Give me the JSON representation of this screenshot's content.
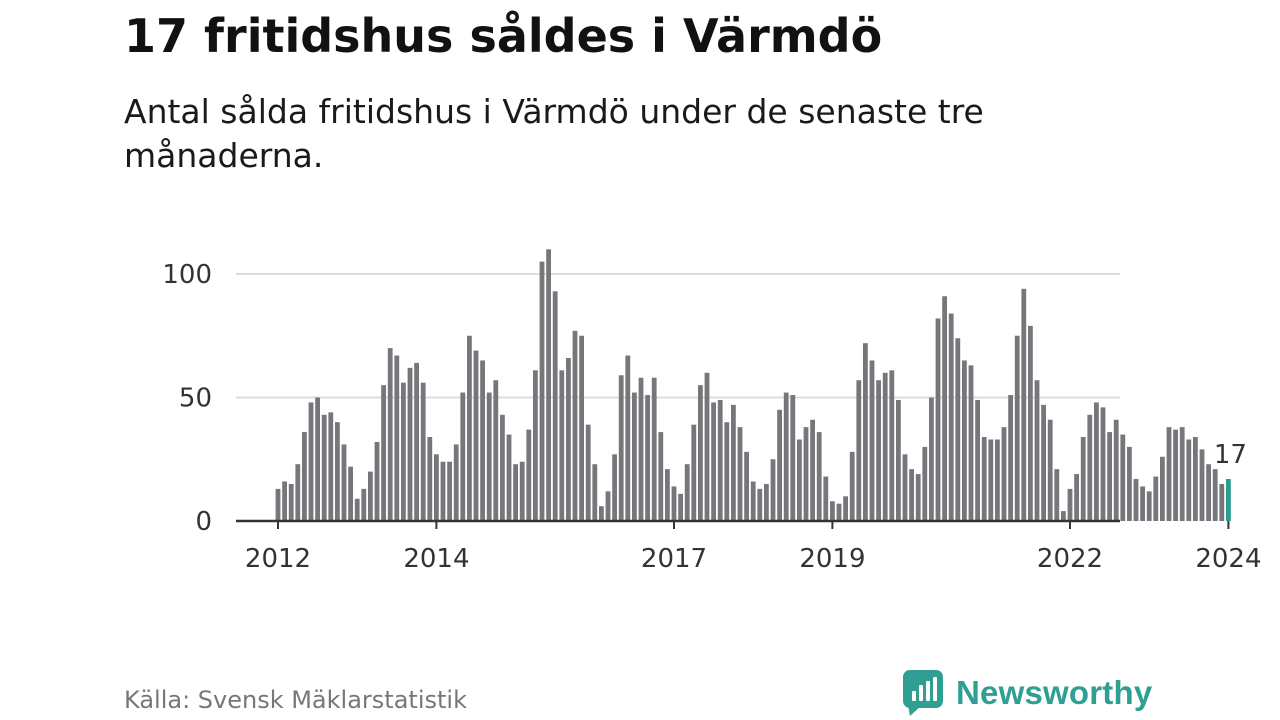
{
  "header": {
    "title": "17 fritidshus såldes i Värmdö",
    "subtitle": "Antal sålda fritidshus i Värmdö under de senaste tre månaderna."
  },
  "footer": {
    "source": "Källa: Svensk Mäklarstatistik",
    "brand": "Newsworthy",
    "brand_icon": "bar-chart-speech-bubble-icon"
  },
  "colors": {
    "bar": "#77767b",
    "highlight": "#2a9d8f",
    "grid": "#dddddd",
    "axis": "#333333",
    "brand": "#2f9e93"
  },
  "chart_data": {
    "type": "bar",
    "title": "17 fritidshus såldes i Värmdö",
    "subtitle": "Antal sålda fritidshus i Värmdö under de senaste tre månaderna.",
    "xlabel": "",
    "ylabel": "",
    "ylim": [
      0,
      110
    ],
    "yticks": [
      0,
      50,
      100
    ],
    "xticks": [
      {
        "label": "2012",
        "month": "2012-01"
      },
      {
        "label": "2014",
        "month": "2014-01"
      },
      {
        "label": "2017",
        "month": "2017-01"
      },
      {
        "label": "2019",
        "month": "2019-01"
      },
      {
        "label": "2022",
        "month": "2022-01"
      },
      {
        "label": "2024",
        "month": "2024-01"
      }
    ],
    "grid": true,
    "start_month": "2012-01",
    "values": [
      13,
      16,
      15,
      23,
      36,
      48,
      50,
      43,
      44,
      40,
      31,
      22,
      9,
      13,
      20,
      32,
      55,
      70,
      67,
      56,
      62,
      64,
      56,
      34,
      27,
      24,
      24,
      31,
      52,
      75,
      69,
      65,
      52,
      57,
      43,
      35,
      23,
      24,
      37,
      61,
      105,
      110,
      93,
      61,
      66,
      77,
      75,
      39,
      23,
      6,
      12,
      27,
      59,
      67,
      52,
      58,
      51,
      58,
      36,
      21,
      14,
      11,
      23,
      39,
      55,
      60,
      48,
      49,
      40,
      47,
      38,
      28,
      16,
      13,
      15,
      25,
      45,
      52,
      51,
      33,
      38,
      41,
      36,
      18,
      8,
      7,
      10,
      28,
      57,
      72,
      65,
      57,
      60,
      61,
      49,
      27,
      21,
      19,
      30,
      50,
      82,
      91,
      84,
      74,
      65,
      63,
      49,
      34,
      33,
      33,
      38,
      51,
      75,
      94,
      79,
      57,
      47,
      41,
      21,
      4,
      13,
      19,
      34,
      43,
      48,
      46,
      36,
      41,
      35,
      30,
      17,
      14,
      12,
      18,
      26,
      38,
      37,
      38,
      33,
      34,
      29,
      23,
      21,
      15,
      17
    ],
    "highlight_last": true,
    "annotation": {
      "text": "17",
      "target": "last"
    }
  }
}
